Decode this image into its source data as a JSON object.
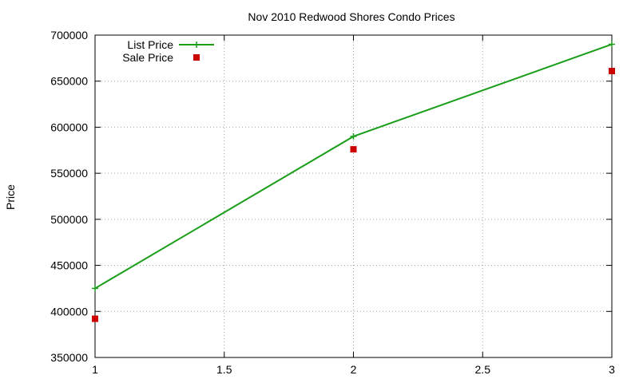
{
  "chart_data": {
    "type": "line",
    "title": "Nov 2010 Redwood Shores Condo Prices",
    "xlabel": "",
    "ylabel": "Price",
    "xlim": [
      1,
      3
    ],
    "ylim": [
      350000,
      700000
    ],
    "xticks": [
      1,
      1.5,
      2,
      2.5,
      3
    ],
    "yticks": [
      350000,
      400000,
      450000,
      500000,
      550000,
      600000,
      650000,
      700000
    ],
    "grid": true,
    "legend_position": "top-left",
    "series": [
      {
        "name": "List Price",
        "style": "linespoints",
        "marker": "plus",
        "color": "#1a9e1a",
        "x": [
          1,
          2,
          3
        ],
        "y": [
          425000,
          590000,
          690000
        ]
      },
      {
        "name": "Sale Price",
        "style": "points",
        "marker": "square",
        "color": "#cc0000",
        "x": [
          1,
          2,
          3
        ],
        "y": [
          392000,
          576000,
          661000
        ]
      }
    ]
  }
}
